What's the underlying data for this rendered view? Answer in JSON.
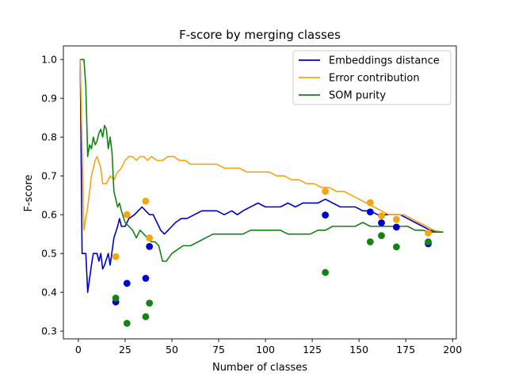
{
  "chart_data": {
    "type": "line",
    "title": "F-score by merging classes",
    "xlabel": "Number of classes",
    "ylabel": "F-score",
    "xlim": [
      -8,
      202
    ],
    "ylim": [
      0.28,
      1.035
    ],
    "xticks": [
      0,
      25,
      50,
      75,
      100,
      125,
      150,
      175,
      200
    ],
    "yticks": [
      0.3,
      0.4,
      0.5,
      0.6,
      0.7,
      0.8,
      0.9,
      1.0
    ],
    "xtick_labels": [
      "0",
      "25",
      "50",
      "75",
      "100",
      "125",
      "150",
      "175",
      "200"
    ],
    "ytick_labels": [
      "0.3",
      "0.4",
      "0.5",
      "0.6",
      "0.7",
      "0.8",
      "0.9",
      "1.0"
    ],
    "grid": false,
    "legend_position": "top-right",
    "series": [
      {
        "name": "Embeddings distance",
        "color": "#0000cd",
        "line": [
          [
            1,
            1.0
          ],
          [
            2,
            0.5
          ],
          [
            4,
            0.5
          ],
          [
            5,
            0.4
          ],
          [
            7,
            0.47
          ],
          [
            8,
            0.5
          ],
          [
            10,
            0.5
          ],
          [
            11,
            0.48
          ],
          [
            12,
            0.5
          ],
          [
            13,
            0.46
          ],
          [
            14,
            0.47
          ],
          [
            16,
            0.5
          ],
          [
            17,
            0.47
          ],
          [
            19,
            0.54
          ],
          [
            21,
            0.57
          ],
          [
            22,
            0.59
          ],
          [
            23,
            0.57
          ],
          [
            25,
            0.57
          ],
          [
            27,
            0.59
          ],
          [
            30,
            0.6
          ],
          [
            32,
            0.61
          ],
          [
            34,
            0.62
          ],
          [
            36,
            0.61
          ],
          [
            38,
            0.6
          ],
          [
            40,
            0.6
          ],
          [
            42,
            0.58
          ],
          [
            44,
            0.56
          ],
          [
            46,
            0.55
          ],
          [
            48,
            0.56
          ],
          [
            50,
            0.57
          ],
          [
            52,
            0.58
          ],
          [
            55,
            0.59
          ],
          [
            58,
            0.59
          ],
          [
            62,
            0.6
          ],
          [
            66,
            0.61
          ],
          [
            70,
            0.61
          ],
          [
            74,
            0.61
          ],
          [
            78,
            0.6
          ],
          [
            82,
            0.61
          ],
          [
            85,
            0.6
          ],
          [
            88,
            0.61
          ],
          [
            92,
            0.62
          ],
          [
            96,
            0.63
          ],
          [
            100,
            0.62
          ],
          [
            104,
            0.62
          ],
          [
            108,
            0.62
          ],
          [
            112,
            0.63
          ],
          [
            116,
            0.62
          ],
          [
            120,
            0.63
          ],
          [
            124,
            0.63
          ],
          [
            128,
            0.63
          ],
          [
            132,
            0.64
          ],
          [
            136,
            0.63
          ],
          [
            140,
            0.62
          ],
          [
            144,
            0.62
          ],
          [
            148,
            0.62
          ],
          [
            152,
            0.61
          ],
          [
            156,
            0.61
          ],
          [
            160,
            0.6
          ],
          [
            164,
            0.6
          ],
          [
            168,
            0.6
          ],
          [
            172,
            0.6
          ],
          [
            176,
            0.59
          ],
          [
            180,
            0.58
          ],
          [
            184,
            0.57
          ],
          [
            188,
            0.56
          ],
          [
            192,
            0.555
          ],
          [
            195,
            0.555
          ]
        ],
        "points": [
          [
            20,
            0.375
          ],
          [
            26,
            0.423
          ],
          [
            36,
            0.436
          ],
          [
            38,
            0.518
          ],
          [
            132,
            0.599
          ],
          [
            156,
            0.607
          ],
          [
            162,
            0.579
          ],
          [
            170,
            0.568
          ],
          [
            187,
            0.525
          ]
        ]
      },
      {
        "name": "Error contribution",
        "color": "#f5a511",
        "line": [
          [
            1,
            1.0
          ],
          [
            3,
            0.56
          ],
          [
            5,
            0.62
          ],
          [
            7,
            0.7
          ],
          [
            9,
            0.74
          ],
          [
            10,
            0.75
          ],
          [
            12,
            0.72
          ],
          [
            13,
            0.68
          ],
          [
            15,
            0.68
          ],
          [
            17,
            0.7
          ],
          [
            19,
            0.69
          ],
          [
            21,
            0.71
          ],
          [
            23,
            0.72
          ],
          [
            25,
            0.74
          ],
          [
            27,
            0.75
          ],
          [
            29,
            0.75
          ],
          [
            31,
            0.74
          ],
          [
            33,
            0.75
          ],
          [
            35,
            0.75
          ],
          [
            37,
            0.74
          ],
          [
            39,
            0.75
          ],
          [
            42,
            0.74
          ],
          [
            45,
            0.74
          ],
          [
            48,
            0.75
          ],
          [
            51,
            0.75
          ],
          [
            54,
            0.74
          ],
          [
            57,
            0.74
          ],
          [
            60,
            0.73
          ],
          [
            63,
            0.73
          ],
          [
            66,
            0.73
          ],
          [
            70,
            0.73
          ],
          [
            74,
            0.73
          ],
          [
            78,
            0.72
          ],
          [
            82,
            0.72
          ],
          [
            86,
            0.72
          ],
          [
            90,
            0.71
          ],
          [
            94,
            0.71
          ],
          [
            98,
            0.71
          ],
          [
            102,
            0.71
          ],
          [
            106,
            0.7
          ],
          [
            110,
            0.7
          ],
          [
            114,
            0.69
          ],
          [
            118,
            0.69
          ],
          [
            122,
            0.68
          ],
          [
            126,
            0.68
          ],
          [
            130,
            0.67
          ],
          [
            134,
            0.67
          ],
          [
            138,
            0.66
          ],
          [
            142,
            0.66
          ],
          [
            146,
            0.65
          ],
          [
            150,
            0.64
          ],
          [
            154,
            0.63
          ],
          [
            158,
            0.62
          ],
          [
            162,
            0.61
          ],
          [
            166,
            0.6
          ],
          [
            170,
            0.6
          ],
          [
            174,
            0.6
          ],
          [
            178,
            0.59
          ],
          [
            182,
            0.58
          ],
          [
            186,
            0.57
          ],
          [
            190,
            0.56
          ],
          [
            195,
            0.555
          ]
        ],
        "points": [
          [
            20,
            0.492
          ],
          [
            26,
            0.6
          ],
          [
            36,
            0.635
          ],
          [
            38,
            0.54
          ],
          [
            132,
            0.66
          ],
          [
            156,
            0.631
          ],
          [
            162,
            0.597
          ],
          [
            170,
            0.588
          ],
          [
            187,
            0.553
          ]
        ]
      },
      {
        "name": "SOM purity",
        "color": "#148214",
        "line": [
          [
            1,
            1.0
          ],
          [
            3,
            1.0
          ],
          [
            4,
            0.93
          ],
          [
            5,
            0.75
          ],
          [
            6,
            0.78
          ],
          [
            7,
            0.77
          ],
          [
            8,
            0.8
          ],
          [
            9,
            0.78
          ],
          [
            10,
            0.79
          ],
          [
            11,
            0.81
          ],
          [
            12,
            0.82
          ],
          [
            13,
            0.8
          ],
          [
            14,
            0.83
          ],
          [
            15,
            0.82
          ],
          [
            16,
            0.77
          ],
          [
            17,
            0.8
          ],
          [
            18,
            0.76
          ],
          [
            19,
            0.66
          ],
          [
            20,
            0.64
          ],
          [
            21,
            0.62
          ],
          [
            22,
            0.63
          ],
          [
            23,
            0.61
          ],
          [
            25,
            0.58
          ],
          [
            27,
            0.57
          ],
          [
            29,
            0.56
          ],
          [
            31,
            0.54
          ],
          [
            33,
            0.56
          ],
          [
            35,
            0.55
          ],
          [
            37,
            0.54
          ],
          [
            39,
            0.53
          ],
          [
            41,
            0.53
          ],
          [
            43,
            0.52
          ],
          [
            45,
            0.48
          ],
          [
            47,
            0.48
          ],
          [
            50,
            0.5
          ],
          [
            53,
            0.51
          ],
          [
            56,
            0.52
          ],
          [
            60,
            0.52
          ],
          [
            64,
            0.53
          ],
          [
            68,
            0.54
          ],
          [
            72,
            0.55
          ],
          [
            76,
            0.55
          ],
          [
            80,
            0.55
          ],
          [
            84,
            0.55
          ],
          [
            88,
            0.55
          ],
          [
            92,
            0.56
          ],
          [
            96,
            0.56
          ],
          [
            100,
            0.56
          ],
          [
            104,
            0.56
          ],
          [
            108,
            0.56
          ],
          [
            112,
            0.55
          ],
          [
            116,
            0.55
          ],
          [
            120,
            0.55
          ],
          [
            124,
            0.55
          ],
          [
            128,
            0.56
          ],
          [
            132,
            0.56
          ],
          [
            136,
            0.57
          ],
          [
            140,
            0.57
          ],
          [
            144,
            0.57
          ],
          [
            148,
            0.57
          ],
          [
            152,
            0.58
          ],
          [
            156,
            0.57
          ],
          [
            160,
            0.57
          ],
          [
            164,
            0.57
          ],
          [
            168,
            0.57
          ],
          [
            172,
            0.57
          ],
          [
            176,
            0.57
          ],
          [
            180,
            0.56
          ],
          [
            184,
            0.56
          ],
          [
            188,
            0.555
          ],
          [
            192,
            0.555
          ],
          [
            195,
            0.555
          ]
        ],
        "points": [
          [
            20,
            0.385
          ],
          [
            26,
            0.32
          ],
          [
            36,
            0.337
          ],
          [
            38,
            0.372
          ],
          [
            132,
            0.451
          ],
          [
            156,
            0.53
          ],
          [
            162,
            0.546
          ],
          [
            170,
            0.517
          ],
          [
            187,
            0.53
          ]
        ]
      }
    ]
  }
}
